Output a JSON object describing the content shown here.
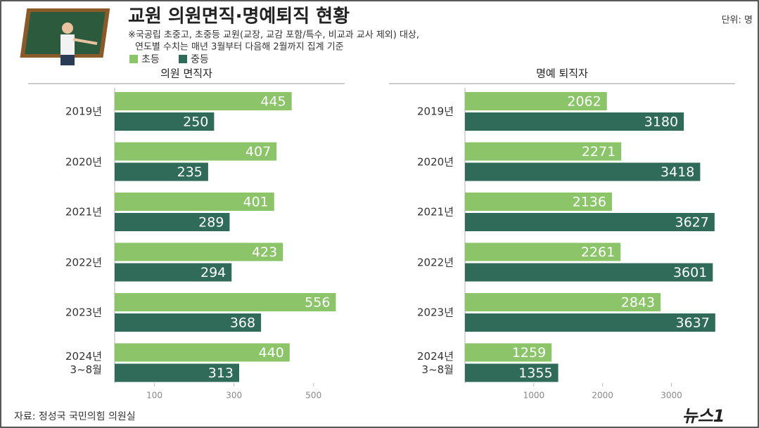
{
  "title": "교원 의원면직·명예퇴직 현황",
  "subtitle": [
    "※국공립 초중고, 초중등 교원(교장, 교감 포함/특수, 비교과 교사 제외) 대상,",
    "연도별 수치는 매년 3월부터 다음해 2월까지 집계 기준"
  ],
  "unit": "단위: 명",
  "source": "자료: 정성국 국민의힘 의원실",
  "logo": "뉴스1",
  "chart_data": [
    {
      "type": "bar",
      "orientation": "horizontal",
      "title": "의원 면직자",
      "categories": [
        "2019년",
        "2020년",
        "2021년",
        "2022년",
        "2023년",
        "2024년\n3~8월"
      ],
      "series": [
        {
          "name": "초등",
          "color": "#8cc46a",
          "values": [
            445,
            407,
            401,
            423,
            556,
            440
          ]
        },
        {
          "name": "중등",
          "color": "#2f6b58",
          "values": [
            250,
            235,
            289,
            294,
            368,
            313
          ]
        }
      ],
      "xlim": [
        0,
        580
      ],
      "xticks": [
        100,
        300,
        500
      ]
    },
    {
      "type": "bar",
      "orientation": "horizontal",
      "title": "명예 퇴직자",
      "categories": [
        "2019년",
        "2020년",
        "2021년",
        "2022년",
        "2023년",
        "2024년\n3~8월"
      ],
      "series": [
        {
          "name": "초등",
          "color": "#8cc46a",
          "values": [
            2062,
            2271,
            2136,
            2261,
            2843,
            1259
          ]
        },
        {
          "name": "중등",
          "color": "#2f6b58",
          "values": [
            3180,
            3418,
            3627,
            3601,
            3637,
            1355
          ]
        }
      ],
      "xlim": [
        0,
        3700
      ],
      "xticks": [
        1000,
        2000,
        3000
      ]
    }
  ]
}
